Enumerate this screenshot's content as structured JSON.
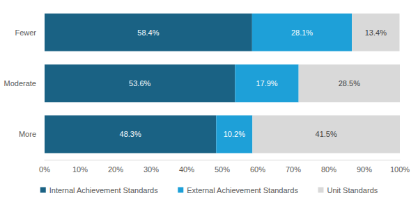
{
  "chart_data": {
    "type": "bar",
    "orientation": "horizontal",
    "stacked": true,
    "data_labels": true,
    "grid": false,
    "legend": "bottom",
    "categories": [
      "Fewer",
      "Moderate",
      "More"
    ],
    "series": [
      {
        "name": "Internal Achievement Standards",
        "color": "#1a6284",
        "values": [
          58.4,
          53.6,
          48.3
        ],
        "value_labels": [
          "58.4%",
          "53.6%",
          "48.3%"
        ]
      },
      {
        "name": "External Achievement Standards",
        "color": "#1ea0d8",
        "values": [
          28.1,
          17.9,
          10.2
        ],
        "value_labels": [
          "28.1%",
          "17.9%",
          "10.2%"
        ]
      },
      {
        "name": "Unit Standards",
        "color": "#d9d9d9",
        "values": [
          13.4,
          28.5,
          41.5
        ],
        "value_labels": [
          "13.4%",
          "28.5%",
          "41.5%"
        ]
      }
    ],
    "xlim": [
      0,
      100
    ],
    "xticks": [
      {
        "value": 0,
        "label": "0%"
      },
      {
        "value": 10,
        "label": "10%"
      },
      {
        "value": 20,
        "label": "20%"
      },
      {
        "value": 30,
        "label": "30%"
      },
      {
        "value": 40,
        "label": "40%"
      },
      {
        "value": 50,
        "label": "50%"
      },
      {
        "value": 60,
        "label": "60%"
      },
      {
        "value": 70,
        "label": "70%"
      },
      {
        "value": 80,
        "label": "80%"
      },
      {
        "value": 90,
        "label": "90%"
      },
      {
        "value": 100,
        "label": "100%"
      }
    ]
  }
}
